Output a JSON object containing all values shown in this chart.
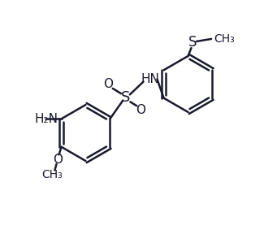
{
  "bg_color": "#ffffff",
  "line_color": "#1a1a2e",
  "line_width": 1.8,
  "figsize": [
    3.25,
    2.88
  ],
  "dpi": 100,
  "xlim": [
    0,
    10
  ],
  "ylim": [
    0,
    9.5
  ]
}
